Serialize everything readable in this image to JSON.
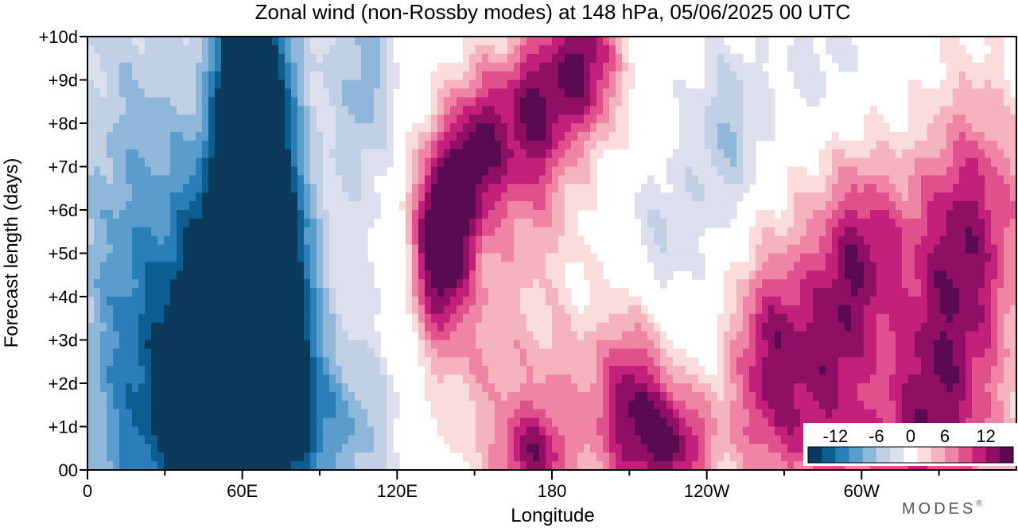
{
  "chart_data": {
    "type": "heatmap",
    "title": "Zonal wind (non-Rossby modes) at 148 hPa,  05/06/2025  00 UTC",
    "xlabel": "Longitude",
    "ylabel": "Forecast length (days)",
    "x_ticks": [
      {
        "lon": 0,
        "label": "0"
      },
      {
        "lon": 60,
        "label": "60E"
      },
      {
        "lon": 120,
        "label": "120E"
      },
      {
        "lon": 180,
        "label": "180"
      },
      {
        "lon": 240,
        "label": "120W"
      },
      {
        "lon": 300,
        "label": "60W"
      }
    ],
    "x_minor_ticks": [
      30,
      90,
      150,
      210,
      270,
      330
    ],
    "xlim": [
      0,
      360
    ],
    "y_ticks": [
      {
        "day": 0,
        "label": "00"
      },
      {
        "day": 1,
        "label": "+1d"
      },
      {
        "day": 2,
        "label": "+2d"
      },
      {
        "day": 3,
        "label": "+3d"
      },
      {
        "day": 4,
        "label": "+4d"
      },
      {
        "day": 5,
        "label": "+5d"
      },
      {
        "day": 6,
        "label": "+6d"
      },
      {
        "day": 7,
        "label": "+7d"
      },
      {
        "day": 8,
        "label": "+8d"
      },
      {
        "day": 9,
        "label": "+9d"
      },
      {
        "day": 10,
        "label": "+10d"
      }
    ],
    "ylim": [
      0,
      10
    ],
    "colorbar": {
      "levels": [
        -14,
        -12,
        -10,
        -8,
        -6,
        -4,
        -2,
        2,
        4,
        6,
        8,
        10,
        12,
        14
      ],
      "colors": [
        "#0b3a5c",
        "#0b5e8f",
        "#2a7fb8",
        "#5a9ccc",
        "#8fb7da",
        "#c2d0e6",
        "#dcdfee",
        "#ffffff",
        "#fadcdc",
        "#f5b3bf",
        "#ef84a5",
        "#e0508c",
        "#c2207a",
        "#8e0f63",
        "#5a0a50"
      ],
      "tick_labels": [
        {
          "value": -12,
          "label": "-12"
        },
        {
          "value": -6,
          "label": "-6"
        },
        {
          "value": 0,
          "label": "0"
        },
        {
          "value": 6,
          "label": "6"
        },
        {
          "value": 12,
          "label": "12"
        }
      ]
    },
    "features": [
      {
        "lon": 62,
        "day": 9.5,
        "amp": -16,
        "slon": 8,
        "sday": 1.8
      },
      {
        "lon": 68,
        "day": 7,
        "amp": -12,
        "slon": 10,
        "sday": 2.2
      },
      {
        "lon": 60,
        "day": 5,
        "amp": -12,
        "slon": 11,
        "sday": 2.2
      },
      {
        "lon": 73,
        "day": 3.5,
        "amp": -13,
        "slon": 9,
        "sday": 1.8
      },
      {
        "lon": 50,
        "day": 3,
        "amp": -11,
        "slon": 12,
        "sday": 2.5
      },
      {
        "lon": 78,
        "day": 1.5,
        "amp": -9,
        "slon": 9,
        "sday": 1.8
      },
      {
        "lon": 45,
        "day": 1,
        "amp": -8,
        "slon": 18,
        "sday": 2.2
      },
      {
        "lon": 20,
        "day": 1.5,
        "amp": -5,
        "slon": 18,
        "sday": 3
      },
      {
        "lon": 20,
        "day": 6,
        "amp": -4,
        "slon": 16,
        "sday": 3
      },
      {
        "lon": 108,
        "day": 9,
        "amp": -5,
        "slon": 7,
        "sday": 1.4
      },
      {
        "lon": 100,
        "day": 1,
        "amp": -5,
        "slon": 14,
        "sday": 1.2
      },
      {
        "lon": 248,
        "day": 7.6,
        "amp": -6,
        "slon": 11,
        "sday": 1.6
      },
      {
        "lon": 222,
        "day": 5.2,
        "amp": -4,
        "slon": 10,
        "sday": 1.4
      },
      {
        "lon": 284,
        "day": 9.4,
        "amp": -3,
        "slon": 12,
        "sday": 1
      },
      {
        "lon": 138,
        "day": 6,
        "amp": 13,
        "slon": 8,
        "sday": 1.4
      },
      {
        "lon": 136,
        "day": 4.6,
        "amp": 8,
        "slon": 7,
        "sday": 1.3
      },
      {
        "lon": 152,
        "day": 7.5,
        "amp": 12,
        "slon": 8,
        "sday": 1.3
      },
      {
        "lon": 172,
        "day": 8.3,
        "amp": 12,
        "slon": 9,
        "sday": 1.3
      },
      {
        "lon": 192,
        "day": 9.4,
        "amp": 14,
        "slon": 10,
        "sday": 1.3
      },
      {
        "lon": 150,
        "day": 3.5,
        "amp": 4,
        "slon": 14,
        "sday": 2.2
      },
      {
        "lon": 228,
        "day": 0.6,
        "amp": 11,
        "slon": 10,
        "sday": 0.9
      },
      {
        "lon": 212,
        "day": 1.5,
        "amp": 10,
        "slon": 9,
        "sday": 1.6
      },
      {
        "lon": 185,
        "day": 1.4,
        "amp": 6,
        "slon": 22,
        "sday": 1.6
      },
      {
        "lon": 172,
        "day": 0.3,
        "amp": 9,
        "slon": 9,
        "sday": 0.7
      },
      {
        "lon": 265,
        "day": 3,
        "amp": 9,
        "slon": 10,
        "sday": 1.5
      },
      {
        "lon": 288,
        "day": 3,
        "amp": 7,
        "slon": 10,
        "sday": 1.5
      },
      {
        "lon": 300,
        "day": 5,
        "amp": 9,
        "slon": 12,
        "sday": 1.6
      },
      {
        "lon": 335,
        "day": 4,
        "amp": 8,
        "slon": 14,
        "sday": 2.2
      },
      {
        "lon": 325,
        "day": 1.6,
        "amp": 6,
        "slon": 14,
        "sday": 1.4
      },
      {
        "lon": 345,
        "day": 6.5,
        "amp": 6,
        "slon": 14,
        "sday": 2.2
      },
      {
        "lon": 310,
        "day": 0.5,
        "amp": 4,
        "slon": 30,
        "sday": 0.8
      },
      {
        "lon": 272,
        "day": 1.2,
        "amp": 4,
        "slon": 20,
        "sday": 1.2
      },
      {
        "lon": 175,
        "day": 6,
        "amp": 4,
        "slon": 12,
        "sday": 1.4
      }
    ],
    "background": {
      "western": {
        "lon_max": 115,
        "value": -3
      },
      "eastern": {
        "lon_min": 250,
        "day_max": 7,
        "value": 2.5
      }
    },
    "grid": false
  },
  "brand": "MODES",
  "brand_mark": "®"
}
